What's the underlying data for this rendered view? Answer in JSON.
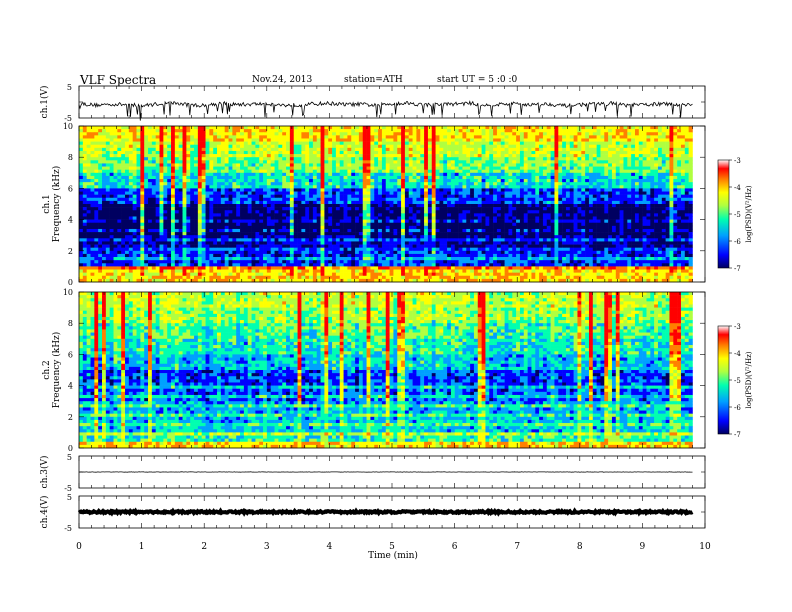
{
  "header": {
    "title": "VLF  Spectra",
    "date": "Nov.24, 2013",
    "station": "station=ATH",
    "start_time": "start  UT  =   5  :0  :0"
  },
  "chart_data": [
    {
      "type": "line",
      "name": "ch1-waveform",
      "ylabel": "ch.1(V)",
      "yticks": [
        "5",
        "-5"
      ],
      "ylim": [
        -5,
        5
      ],
      "x": [
        0,
        0.25,
        0.5,
        0.75,
        1,
        1.25,
        1.5,
        1.75,
        2,
        2.25,
        2.5,
        2.75,
        3,
        3.25,
        3.5,
        3.75,
        4,
        4.25,
        4.5,
        4.75,
        5,
        5.25,
        5.5,
        5.75,
        6,
        6.25,
        6.5,
        6.75,
        7,
        7.25,
        7.5,
        7.75,
        8,
        8.25,
        8.5,
        8.75,
        9,
        9.25,
        9.5,
        9.8
      ],
      "y": [
        -0.4,
        -1,
        -0.7,
        -0.8,
        -1.2,
        -0.6,
        -0.3,
        -0.9,
        -1.1,
        -0.4,
        -0.8,
        -0.7,
        -0.5,
        -1,
        -0.9,
        -0.6,
        -0.4,
        -0.8,
        -0.7,
        -1.1,
        -0.5,
        -0.3,
        -0.9,
        -0.8,
        -0.6,
        -0.4,
        -1,
        -0.7,
        -0.5,
        -0.9,
        -0.6,
        -1.2,
        -0.8,
        -0.7,
        -0.4,
        -1,
        -0.9,
        -0.6,
        -0.8,
        -0.7
      ]
    },
    {
      "type": "heatmap",
      "name": "ch1-spectrogram",
      "ylabel": "ch.1\nFrequency (kHz)",
      "yticks": [
        "0",
        "2",
        "4",
        "6",
        "8",
        "10"
      ],
      "ylim": [
        0,
        10
      ],
      "colorbar": {
        "label": "log(PSD)(V²/Hz)",
        "ticks": [
          "-3",
          "-4",
          "-5",
          "-6",
          "-7"
        ],
        "range": [
          -7,
          -3
        ]
      },
      "bands_khz": [
        0,
        1,
        2,
        3,
        4,
        5,
        6,
        7,
        8,
        9,
        10
      ],
      "band_log_psd": [
        -4.2,
        -6.2,
        -6.6,
        -6.9,
        -6.7,
        -6.1,
        -5.4,
        -4.9,
        -4.6,
        -4.2
      ],
      "note_time_min": [
        0,
        9.8
      ]
    },
    {
      "type": "heatmap",
      "name": "ch2-spectrogram",
      "ylabel": "ch.2\nFrequency (kHz)",
      "yticks": [
        "0",
        "2",
        "4",
        "6",
        "8",
        "10"
      ],
      "ylim": [
        0,
        10
      ],
      "colorbar": {
        "label": "log(PSD)(V²/Hz)",
        "ticks": [
          "-3",
          "-4",
          "-5",
          "-6",
          "-7"
        ],
        "range": [
          -7,
          -3
        ]
      },
      "bands_khz": [
        0,
        1,
        2,
        3,
        4,
        5,
        6,
        7,
        8,
        9,
        10
      ],
      "band_log_psd": [
        -5.2,
        -5.6,
        -5.7,
        -6.0,
        -6.1,
        -5.6,
        -5.3,
        -5.1,
        -4.8,
        -4.6
      ],
      "note_time_min": [
        0,
        9.8
      ]
    },
    {
      "type": "line",
      "name": "ch3-waveform",
      "ylabel": "ch.3(V)",
      "yticks": [
        "5",
        "-5"
      ],
      "ylim": [
        -5,
        5
      ],
      "x": [
        0,
        9.8
      ],
      "y": [
        0,
        0
      ]
    },
    {
      "type": "line",
      "name": "ch4-waveform",
      "ylabel": "ch.4(V)",
      "yticks": [
        "5",
        "-5"
      ],
      "ylim": [
        -5,
        5
      ],
      "x": [
        0,
        9.8
      ],
      "y": [
        0,
        0
      ]
    }
  ],
  "xaxis": {
    "label": "Time  (min)",
    "ticks": [
      "0",
      "1",
      "2",
      "3",
      "4",
      "5",
      "6",
      "7",
      "8",
      "9",
      "10"
    ],
    "xlim": [
      0,
      10
    ]
  },
  "colors": {
    "colormap": [
      "#000060",
      "#0000ff",
      "#00a0ff",
      "#00ffb0",
      "#b0ff40",
      "#ffff00",
      "#ff8000",
      "#ff0000",
      "#ffffff"
    ],
    "trace": "#000000"
  }
}
